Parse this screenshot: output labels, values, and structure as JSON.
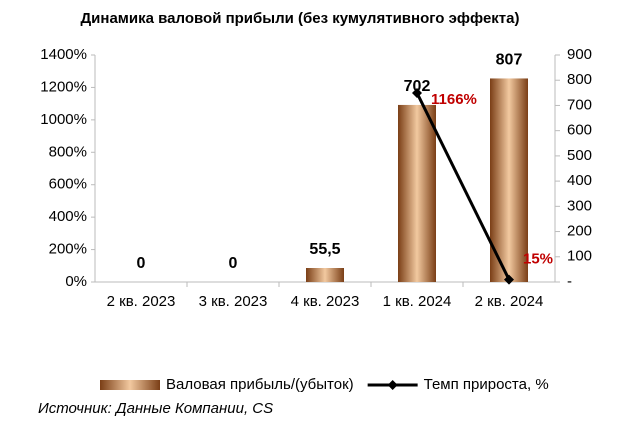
{
  "chart_data": {
    "type": "bar-line",
    "title": "Динамика валовой прибыли (без кумулятивного эффекта)",
    "categories": [
      "2 кв. 2023",
      "3 кв. 2023",
      "4 кв. 2023",
      "1 кв. 2024",
      "2 кв. 2024"
    ],
    "series": [
      {
        "name": "Валовая прибыль/(убыток)",
        "type": "bar",
        "axis": "y2",
        "color": "#b8743f",
        "values": [
          0,
          0,
          55.5,
          702,
          807
        ],
        "value_labels": [
          "0",
          "0",
          "55,5",
          "702",
          "807"
        ]
      },
      {
        "name": "Темп прироста, %",
        "type": "line",
        "axis": "y",
        "color": "#000000",
        "values": [
          null,
          null,
          null,
          1166,
          15
        ],
        "value_labels": [
          null,
          null,
          null,
          "1166%",
          "15%"
        ]
      }
    ],
    "ylim": [
      0,
      1400
    ],
    "yticks": [
      {
        "value": 0,
        "label": "0%"
      },
      {
        "value": 200,
        "label": "200%"
      },
      {
        "value": 400,
        "label": "400%"
      },
      {
        "value": 600,
        "label": "600%"
      },
      {
        "value": 800,
        "label": "800%"
      },
      {
        "value": 1000,
        "label": "1000%"
      },
      {
        "value": 1200,
        "label": "1200%"
      },
      {
        "value": 1400,
        "label": "1400%"
      }
    ],
    "y2lim": [
      0,
      900
    ],
    "y2ticks": [
      {
        "value": 0,
        "label": "-"
      },
      100,
      200,
      300,
      400,
      500,
      600,
      700,
      800,
      900
    ],
    "source": "Источник: Данные Компании, CS"
  }
}
